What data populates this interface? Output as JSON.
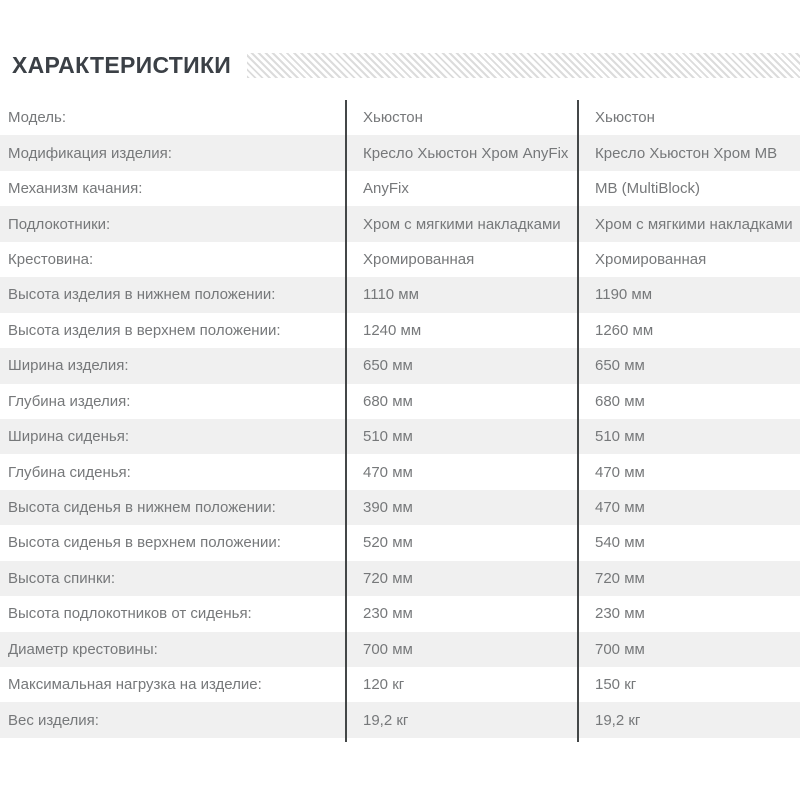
{
  "page": {
    "title": "ХАРАКТЕРИСТИКИ"
  },
  "colors": {
    "title_text": "#3b4046",
    "alt_row_bg": "#f0f0f0",
    "cell_text": "#76787a",
    "column_divider": "#444748",
    "stripe_band": "#dcdcdc"
  },
  "table": {
    "rows": [
      {
        "label": "Модель:",
        "a": "Хьюстон",
        "b": "Хьюстон"
      },
      {
        "label": "Модификация изделия:",
        "a": "Кресло Хьюстон Хром AnyFix",
        "b": "Кресло Хьюстон Хром MB"
      },
      {
        "label": "Механизм качания:",
        "a": "AnyFix",
        "b": "MB (MultiBlock)"
      },
      {
        "label": "Подлокотники:",
        "a": "Хром с мягкими накладками",
        "b": "Хром с мягкими накладками"
      },
      {
        "label": "Крестовина:",
        "a": "Хромированная",
        "b": "Хромированная"
      },
      {
        "label": "Высота изделия в нижнем положении:",
        "a": "1110 мм",
        "b": "1190 мм"
      },
      {
        "label": "Высота изделия в верхнем положении:",
        "a": "1240 мм",
        "b": "1260 мм"
      },
      {
        "label": "Ширина изделия:",
        "a": "650 мм",
        "b": "650 мм"
      },
      {
        "label": "Глубина изделия:",
        "a": "680 мм",
        "b": "680 мм"
      },
      {
        "label": "Ширина сиденья:",
        "a": "510 мм",
        "b": "510 мм"
      },
      {
        "label": "Глубина сиденья:",
        "a": "470 мм",
        "b": "470 мм"
      },
      {
        "label": "Высота сиденья в нижнем положении:",
        "a": "390 мм",
        "b": "470 мм"
      },
      {
        "label": "Высота сиденья в верхнем положении:",
        "a": "520 мм",
        "b": "540 мм"
      },
      {
        "label": "Высота спинки:",
        "a": "720 мм",
        "b": "720 мм"
      },
      {
        "label": "Высота подлокотников от сиденья:",
        "a": "230 мм",
        "b": "230 мм"
      },
      {
        "label": "Диаметр крестовины:",
        "a": "700 мм",
        "b": "700 мм"
      },
      {
        "label": "Максимальная нагрузка на изделие:",
        "a": "120 кг",
        "b": "150 кг"
      },
      {
        "label": "Вес изделия:",
        "a": "19,2 кг",
        "b": "19,2 кг"
      }
    ]
  }
}
